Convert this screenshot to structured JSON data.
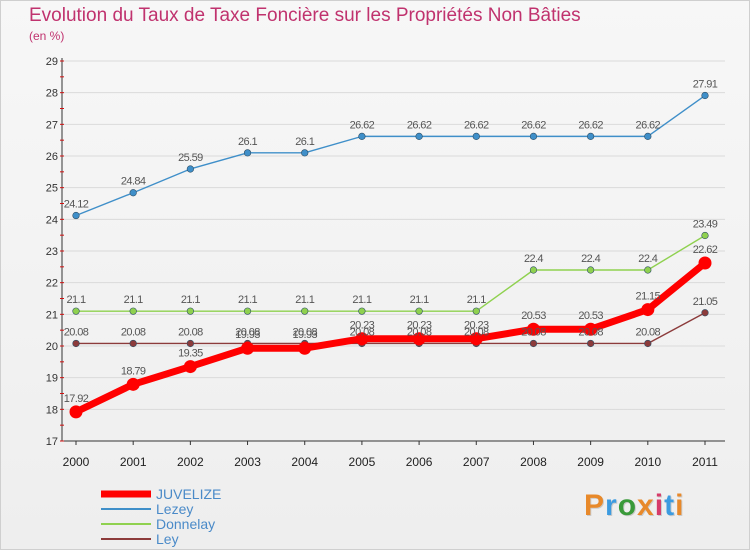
{
  "title": "Evolution du Taux de Taxe Foncière sur les Propriétés Non Bâties",
  "unit": "(en %)",
  "brand": "Proxiti",
  "brand_colors": [
    "#e8892a",
    "#3c9be0",
    "#3a9a3a",
    "#e8892a",
    "#d63b6a",
    "#3c9be0",
    "#e8892a"
  ],
  "chart_data": {
    "type": "line",
    "title": "Evolution du Taux de Taxe Foncière sur les Propriétés Non Bâties",
    "ylabel": "(en %)",
    "xlabel": "",
    "ylim": [
      17,
      29
    ],
    "yticks": [
      "17",
      "18",
      "19",
      "20",
      "21",
      "22",
      "23",
      "24",
      "25",
      "26",
      "27",
      "28",
      "29"
    ],
    "x": [
      "2000",
      "2001",
      "2002",
      "2003",
      "2004",
      "2005",
      "2006",
      "2007",
      "2008",
      "2009",
      "2010",
      "2011"
    ],
    "legend_position": "bottom-left",
    "series": [
      {
        "name": "JUVELIZE",
        "color": "#ff0000",
        "values": [
          17.92,
          18.79,
          19.35,
          19.93,
          19.93,
          20.23,
          20.23,
          20.23,
          20.53,
          20.53,
          21.15,
          22.62
        ],
        "labels": [
          "17.92",
          "18.79",
          "19.35",
          "19.93",
          "19.93",
          "20.23",
          "20.23",
          "20.23",
          "20.53",
          "20.53",
          "21.15",
          "22.62"
        ]
      },
      {
        "name": "Lezey",
        "color": "#3f8fc9",
        "values": [
          24.12,
          24.84,
          25.59,
          26.1,
          26.1,
          26.62,
          26.62,
          26.62,
          26.62,
          26.62,
          26.62,
          27.91
        ],
        "labels": [
          "24.12",
          "24.84",
          "25.59",
          "26.1",
          "26.1",
          "26.62",
          "26.62",
          "26.62",
          "26.62",
          "26.62",
          "26.62",
          "27.91"
        ]
      },
      {
        "name": "Donnelay",
        "color": "#8fd14f",
        "values": [
          21.1,
          21.1,
          21.1,
          21.1,
          21.1,
          21.1,
          21.1,
          21.1,
          22.4,
          22.4,
          22.4,
          23.49
        ],
        "labels": [
          "21.1",
          "21.1",
          "21.1",
          "21.1",
          "21.1",
          "21.1",
          "21.1",
          "21.1",
          "22.4",
          "22.4",
          "22.4",
          "23.49"
        ]
      },
      {
        "name": "Ley",
        "color": "#8c3b3b",
        "values": [
          20.08,
          20.08,
          20.08,
          20.08,
          20.08,
          20.08,
          20.08,
          20.08,
          20.08,
          20.08,
          20.08,
          21.05
        ],
        "labels": [
          "20.08",
          "20.08",
          "20.08",
          "20.08",
          "20.08",
          "20.08",
          "20.08",
          "20.08",
          "20.08",
          "20.08",
          "20.08",
          "21.05"
        ]
      }
    ]
  }
}
